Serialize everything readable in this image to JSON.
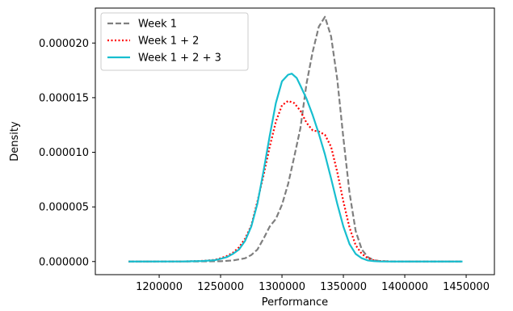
{
  "chart_data": {
    "type": "line",
    "xlabel": "Performance",
    "ylabel": "Density",
    "xlim": [
      1148000,
      1473000
    ],
    "ylim": [
      -1.2e-06,
      2.32e-05
    ],
    "x_ticks": [
      1200000,
      1250000,
      1300000,
      1350000,
      1400000,
      1450000
    ],
    "x_tick_labels": [
      "1200000",
      "1250000",
      "1300000",
      "1350000",
      "1400000",
      "1450000"
    ],
    "y_ticks": [
      0.0,
      5e-06,
      1e-05,
      1.5e-05,
      2e-05
    ],
    "y_tick_labels": [
      "0.000000",
      "0.000005",
      "0.000010",
      "0.000015",
      "0.000020"
    ],
    "grid": false,
    "legend_position": "top-left",
    "series": [
      {
        "name": "Week 1",
        "color": "#7f7f7f",
        "line_style": "dashed",
        "x": [
          1175000,
          1230000,
          1250000,
          1260000,
          1270000,
          1275000,
          1280000,
          1285000,
          1290000,
          1295000,
          1300000,
          1305000,
          1310000,
          1315000,
          1320000,
          1325000,
          1330000,
          1335000,
          1340000,
          1345000,
          1350000,
          1355000,
          1360000,
          1365000,
          1370000,
          1375000,
          1380000,
          1390000,
          1400000,
          1420000,
          1447000
        ],
        "y": [
          0,
          1e-08,
          3e-08,
          1e-07,
          3e-07,
          6e-07,
          1.1e-06,
          2.1e-06,
          3.2e-06,
          3.9e-06,
          5.2e-06,
          7.1e-06,
          9.6e-06,
          1.22e-05,
          1.63e-05,
          1.92e-05,
          2.15e-05,
          2.24e-05,
          2.06e-05,
          1.67e-05,
          1.13e-05,
          6.3e-06,
          2.8e-06,
          1.1e-06,
          4e-07,
          1.2e-07,
          4e-08,
          1e-08,
          0,
          0,
          0
        ]
      },
      {
        "name": "Week 1 + 2",
        "color": "#ff0000",
        "line_style": "dotted",
        "x": [
          1175000,
          1220000,
          1235000,
          1245000,
          1250000,
          1255000,
          1260000,
          1265000,
          1270000,
          1275000,
          1280000,
          1285000,
          1290000,
          1295000,
          1300000,
          1305000,
          1310000,
          1315000,
          1320000,
          1325000,
          1330000,
          1335000,
          1340000,
          1345000,
          1350000,
          1355000,
          1360000,
          1365000,
          1370000,
          1375000,
          1380000,
          1390000,
          1400000,
          1447000
        ],
        "y": [
          0,
          1e-08,
          6e-08,
          1.5e-07,
          3e-07,
          5e-07,
          8e-07,
          1.3e-06,
          2.1e-06,
          3.3e-06,
          5.5e-06,
          7.9e-06,
          1.05e-05,
          1.28e-05,
          1.43e-05,
          1.47e-05,
          1.45e-05,
          1.38e-05,
          1.27e-05,
          1.2e-05,
          1.19e-05,
          1.16e-05,
          1.05e-05,
          8.2e-06,
          5.5e-06,
          3.1e-06,
          1.5e-06,
          7e-07,
          3e-07,
          1e-07,
          4e-08,
          1e-08,
          0,
          0
        ]
      },
      {
        "name": "Week 1 + 2 + 3",
        "color": "#17becf",
        "line_style": "solid",
        "x": [
          1175000,
          1220000,
          1235000,
          1245000,
          1250000,
          1255000,
          1260000,
          1265000,
          1270000,
          1275000,
          1280000,
          1285000,
          1290000,
          1295000,
          1300000,
          1305000,
          1308000,
          1312000,
          1315000,
          1320000,
          1325000,
          1330000,
          1335000,
          1340000,
          1345000,
          1350000,
          1355000,
          1360000,
          1365000,
          1370000,
          1375000,
          1380000,
          1390000,
          1400000,
          1447000
        ],
        "y": [
          0,
          1e-08,
          5e-08,
          1.2e-07,
          2.5e-07,
          4e-07,
          7e-07,
          1.1e-06,
          1.9e-06,
          3.2e-06,
          5.3e-06,
          8.3e-06,
          1.15e-05,
          1.45e-05,
          1.65e-05,
          1.71e-05,
          1.72e-05,
          1.68e-05,
          1.61e-05,
          1.49e-05,
          1.34e-05,
          1.17e-05,
          9.8e-06,
          7.6e-06,
          5.3e-06,
          3.2e-06,
          1.6e-06,
          7e-07,
          3e-07,
          1e-07,
          4e-08,
          1e-08,
          0,
          0,
          0
        ]
      }
    ]
  }
}
